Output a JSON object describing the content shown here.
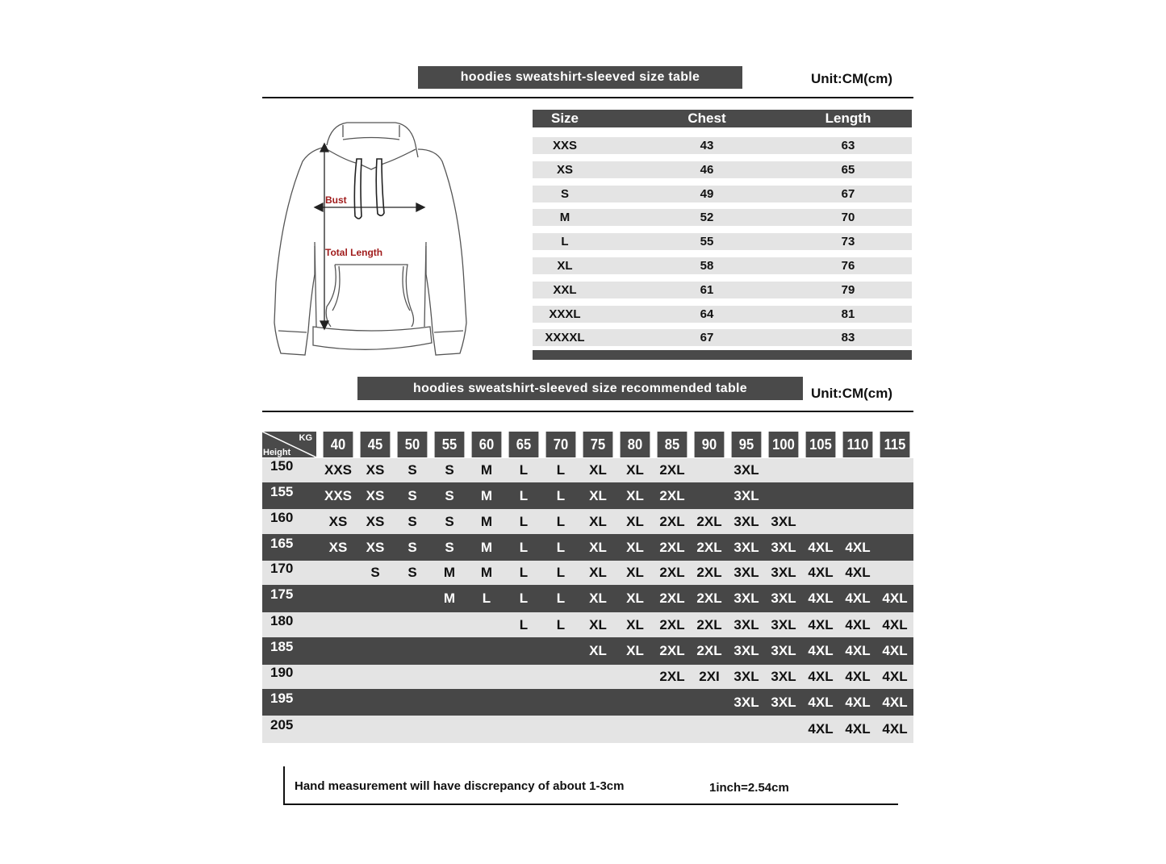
{
  "size_table": {
    "title": "hoodies sweatshirt-sleeved size  table",
    "unit": "Unit:CM(cm)",
    "columns": [
      "Size",
      "Chest",
      "Length"
    ],
    "rows": [
      [
        "XXS",
        "43",
        "63"
      ],
      [
        "XS",
        "46",
        "65"
      ],
      [
        "S",
        "49",
        "67"
      ],
      [
        "M",
        "52",
        "70"
      ],
      [
        "L",
        "55",
        "73"
      ],
      [
        "XL",
        "58",
        "76"
      ],
      [
        "XXL",
        "61",
        "79"
      ],
      [
        "XXXL",
        "64",
        "81"
      ],
      [
        "XXXXL",
        "67",
        "83"
      ]
    ]
  },
  "diagram": {
    "bust_label": "Bust",
    "length_label": "Total Length",
    "label_color": "#a01c1c"
  },
  "recommended_table": {
    "title": "hoodies sweatshirt-sleeved size recommended table",
    "unit": "Unit:CM(cm)",
    "corner_kg": "KG",
    "corner_height": "Height",
    "weights": [
      "40",
      "45",
      "50",
      "55",
      "60",
      "65",
      "70",
      "75",
      "80",
      "85",
      "90",
      "95",
      "100",
      "105",
      "110",
      "115"
    ],
    "rows": [
      {
        "height": "150",
        "sizes": [
          "XXS",
          "XS",
          "S",
          "S",
          "M",
          "L",
          "L",
          "XL",
          "XL",
          "2XL",
          "",
          "3XL",
          "",
          "",
          "",
          ""
        ]
      },
      {
        "height": "155",
        "sizes": [
          "XXS",
          "XS",
          "S",
          "S",
          "M",
          "L",
          "L",
          "XL",
          "XL",
          "2XL",
          "",
          "3XL",
          "",
          "",
          "",
          ""
        ]
      },
      {
        "height": "160",
        "sizes": [
          "XS",
          "XS",
          "S",
          "S",
          "M",
          "L",
          "L",
          "XL",
          "XL",
          "2XL",
          "2XL",
          "3XL",
          "3XL",
          "",
          "",
          ""
        ]
      },
      {
        "height": "165",
        "sizes": [
          "XS",
          "XS",
          "S",
          "S",
          "M",
          "L",
          "L",
          "XL",
          "XL",
          "2XL",
          "2XL",
          "3XL",
          "3XL",
          "4XL",
          "4XL",
          ""
        ]
      },
      {
        "height": "170",
        "sizes": [
          "",
          "S",
          "S",
          "M",
          "M",
          "L",
          "L",
          "XL",
          "XL",
          "2XL",
          "2XL",
          "3XL",
          "3XL",
          "4XL",
          "4XL",
          ""
        ]
      },
      {
        "height": "175",
        "sizes": [
          "",
          "",
          "",
          "M",
          "L",
          "L",
          "L",
          "XL",
          "XL",
          "2XL",
          "2XL",
          "3XL",
          "3XL",
          "4XL",
          "4XL",
          "4XL"
        ]
      },
      {
        "height": "180",
        "sizes": [
          "",
          "",
          "",
          "",
          "",
          "L",
          "L",
          "XL",
          "XL",
          "2XL",
          "2XL",
          "3XL",
          "3XL",
          "4XL",
          "4XL",
          "4XL"
        ]
      },
      {
        "height": "185",
        "sizes": [
          "",
          "",
          "",
          "",
          "",
          "",
          "",
          "XL",
          "XL",
          "2XL",
          "2XL",
          "3XL",
          "3XL",
          "4XL",
          "4XL",
          "4XL"
        ]
      },
      {
        "height": "190",
        "sizes": [
          "",
          "",
          "",
          "",
          "",
          "",
          "",
          "",
          "",
          "2XL",
          "2XI",
          "3XL",
          "3XL",
          "4XL",
          "4XL",
          "4XL"
        ]
      },
      {
        "height": "195",
        "sizes": [
          "",
          "",
          "",
          "",
          "",
          "",
          "",
          "",
          "",
          "",
          "",
          "3XL",
          "3XL",
          "4XL",
          "4XL",
          "4XL"
        ]
      },
      {
        "height": "205",
        "sizes": [
          "",
          "",
          "",
          "",
          "",
          "",
          "",
          "",
          "",
          "",
          "",
          "",
          "",
          "4XL",
          "4XL",
          "4XL"
        ]
      }
    ]
  },
  "footer": {
    "note": "Hand measurement will have discrepancy of about  1-3cm",
    "conversion": "1inch=2.54cm"
  },
  "colors": {
    "bar": "#4a4a4a",
    "stripe": "#e4e4e4",
    "dark_row": "#474747"
  }
}
